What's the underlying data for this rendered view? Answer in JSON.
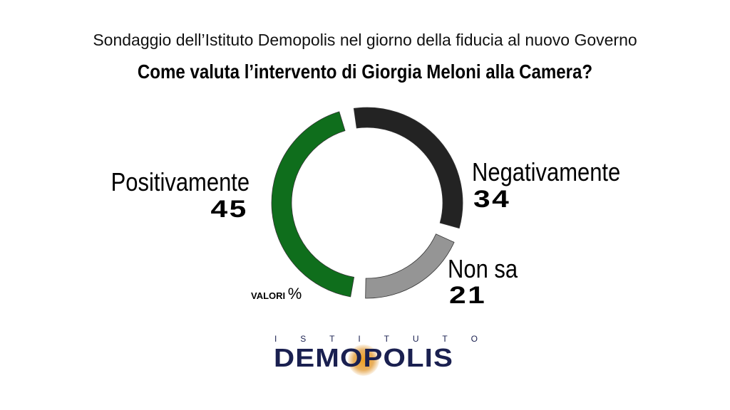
{
  "header": {
    "subtitle": "Sondaggio dell’Istituto Demopolis nel giorno della fiducia al nuovo Governo",
    "title": "Come valuta l’intervento di Giorgia Meloni alla Camera?"
  },
  "chart_data": {
    "type": "pie",
    "variant": "donut",
    "title": "Come valuta l’intervento di Giorgia Meloni alla Camera?",
    "units_label": "VALORI",
    "units_symbol": "%",
    "slices": [
      {
        "label": "Negativamente",
        "value": 34,
        "color": "#232323"
      },
      {
        "label": "Non sa",
        "value": 21,
        "color": "#959595"
      },
      {
        "label": "Positivamente",
        "value": 45,
        "color": "#0f6e1c"
      }
    ]
  },
  "logo": {
    "top_letters": [
      "I",
      "S",
      "T",
      "I",
      "T",
      "U",
      "T",
      "O"
    ],
    "name": "DEMOPOLIS"
  }
}
